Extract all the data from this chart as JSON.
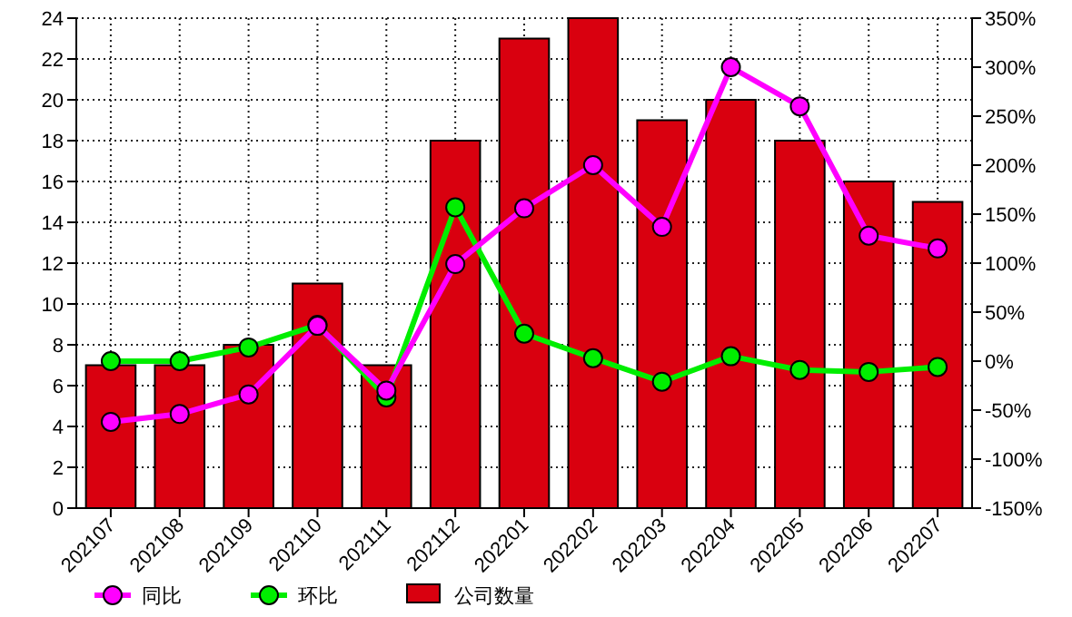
{
  "chart_data": {
    "type": "bar",
    "categories": [
      "202107",
      "202108",
      "202109",
      "202110",
      "202111",
      "202112",
      "202201",
      "202202",
      "202203",
      "202204",
      "202205",
      "202206",
      "202207"
    ],
    "ylim": [
      0,
      24
    ],
    "yticks": [
      0,
      2,
      4,
      6,
      8,
      10,
      12,
      14,
      16,
      18,
      20,
      22,
      24
    ],
    "y2lim": [
      -150,
      350
    ],
    "y2ticks": [
      {
        "value": -150,
        "label": "-150%"
      },
      {
        "value": -100,
        "label": "-100%"
      },
      {
        "value": -50,
        "label": "-50%"
      },
      {
        "value": 0,
        "label": "0%"
      },
      {
        "value": 50,
        "label": "50%"
      },
      {
        "value": 100,
        "label": "100%"
      },
      {
        "value": 150,
        "label": "150%"
      },
      {
        "value": 200,
        "label": "200%"
      },
      {
        "value": 250,
        "label": "250%"
      },
      {
        "value": 300,
        "label": "300%"
      },
      {
        "value": 350,
        "label": "350%"
      }
    ],
    "grid": true,
    "legend": "bottom",
    "marker": "circle",
    "series": [
      {
        "name": "同比",
        "type": "line",
        "axis": "y2",
        "color": "#ff00ff",
        "values": [
          -62,
          -54,
          -34,
          36,
          -30,
          99,
          156,
          200,
          137,
          300,
          260,
          128,
          115
        ]
      },
      {
        "name": "环比",
        "type": "line",
        "axis": "y2",
        "color": "#00ee00",
        "values": [
          0,
          0,
          14,
          37,
          -37,
          157,
          28,
          3,
          -21,
          5,
          -9,
          -11,
          -6
        ]
      },
      {
        "name": "公司数量",
        "color": "#d9000f",
        "values": [
          7,
          7,
          8,
          11,
          7,
          18,
          23,
          24,
          19,
          20,
          18,
          16,
          15
        ]
      }
    ]
  }
}
